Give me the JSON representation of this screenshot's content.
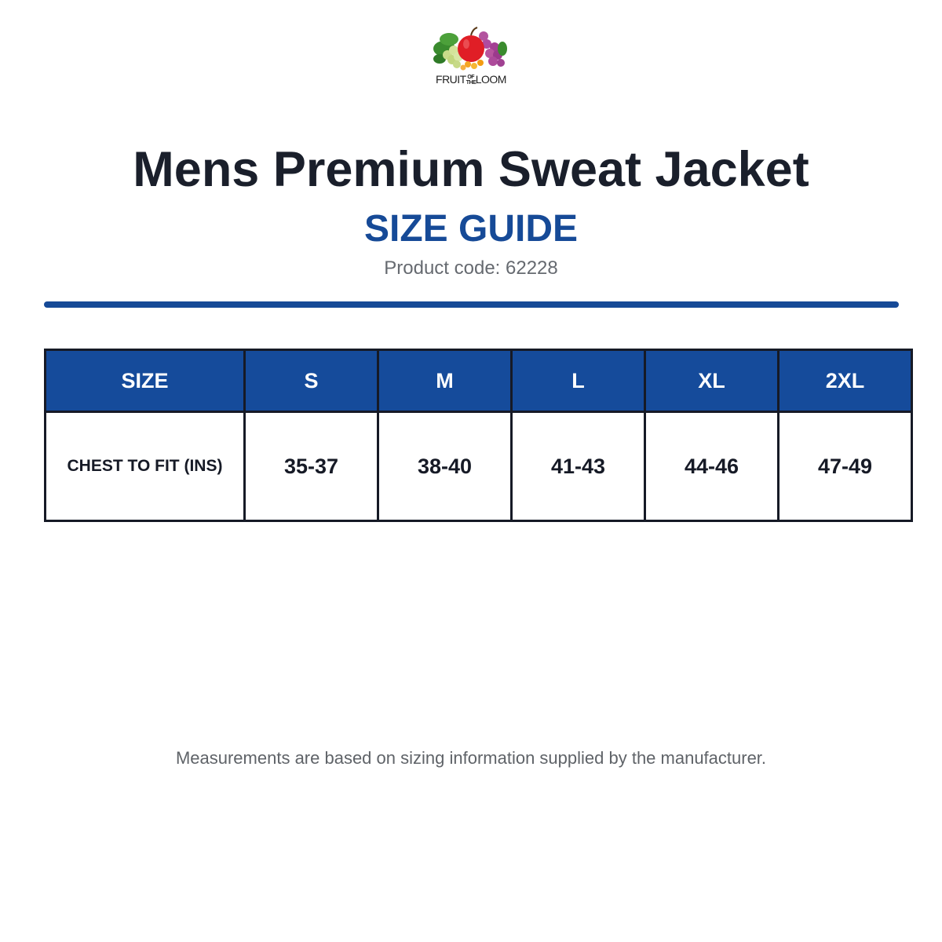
{
  "logo": {
    "text": [
      "FRUIT",
      "OF",
      "THE",
      "LOOM"
    ]
  },
  "header": {
    "title": "Mens Premium Sweat Jacket",
    "subtitle": "SIZE GUIDE",
    "product_code": "Product code: 62228"
  },
  "table": {
    "header": [
      "SIZE",
      "S",
      "M",
      "L",
      "XL",
      "2XL"
    ],
    "rows": [
      [
        "CHEST TO FIT (INS)",
        "35-37",
        "38-40",
        "41-43",
        "44-46",
        "47-49"
      ]
    ]
  },
  "footer": {
    "note": "Measurements are based on sizing information supplied by the manufacturer."
  }
}
